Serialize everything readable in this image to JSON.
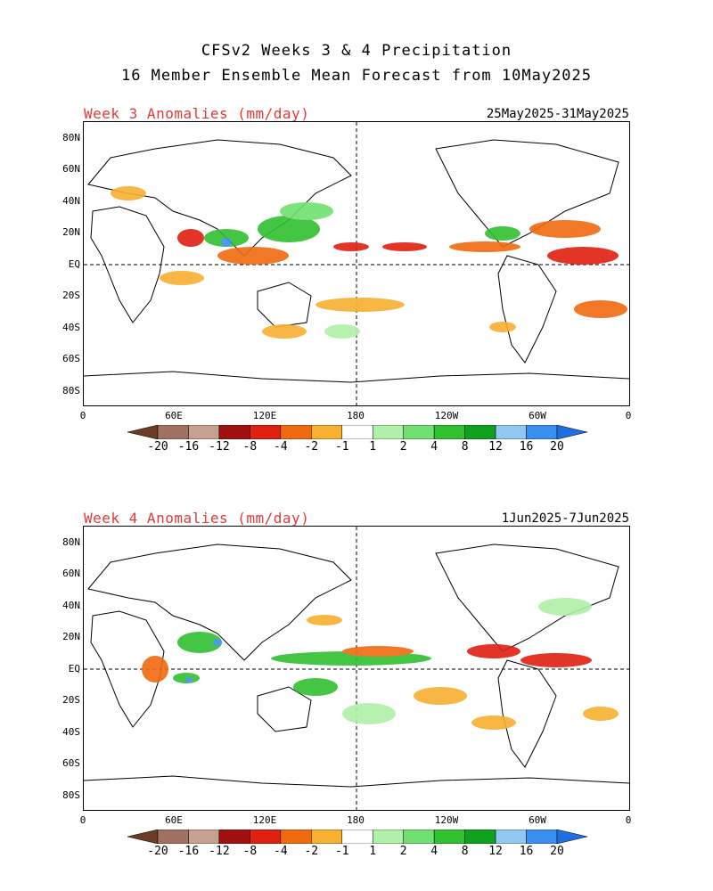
{
  "header": {
    "title_line1": "CFSv2 Weeks 3 & 4 Precipitation",
    "title_line2": "16 Member Ensemble Mean Forecast from 10May2025"
  },
  "panels": [
    {
      "label": "Week 3 Anomalies (mm/day)",
      "dates": "25May2025-31May2025"
    },
    {
      "label": "Week 4 Anomalies (mm/day)",
      "dates": "1Jun2025-7Jun2025"
    }
  ],
  "axes": {
    "lat_labels": [
      "80N",
      "60N",
      "40N",
      "20N",
      "EQ",
      "20S",
      "40S",
      "60S",
      "80S"
    ],
    "lon_labels": [
      "0",
      "60E",
      "120E",
      "180",
      "120W",
      "60W",
      "0"
    ]
  },
  "colorbar": {
    "labels": [
      "-20",
      "-16",
      "-12",
      "-8",
      "-4",
      "-2",
      "-1",
      "1",
      "2",
      "4",
      "8",
      "12",
      "16",
      "20"
    ],
    "colors": [
      "#6b3b23",
      "#a07060",
      "#c8a090",
      "#a01010",
      "#e02010",
      "#f06a10",
      "#f8b030",
      "#ffffff",
      "#b0f0a8",
      "#70e070",
      "#30c030",
      "#10a020",
      "#90c8f0",
      "#3a90f0",
      "#1e6ee0"
    ]
  }
}
